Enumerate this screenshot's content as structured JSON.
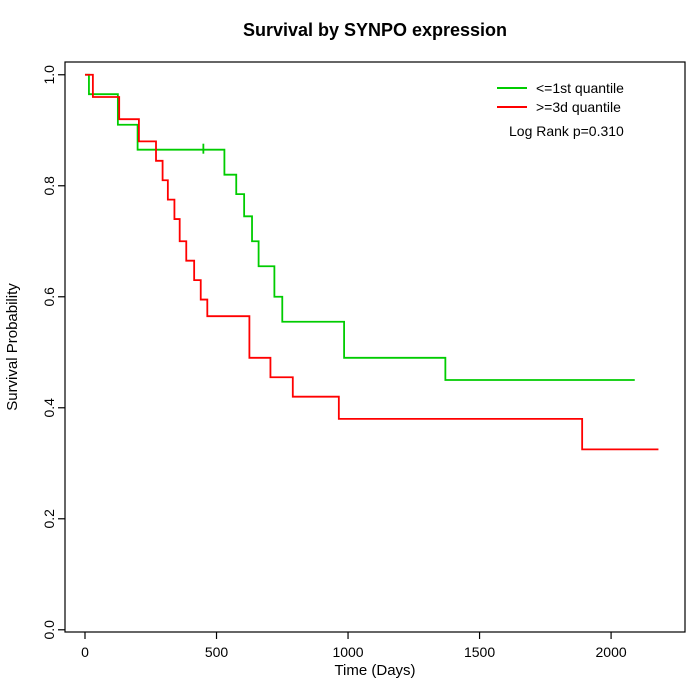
{
  "chart_data": {
    "type": "line",
    "subtype": "kaplan-meier-step",
    "title": "Survival by SYNPO expression",
    "xlabel": "Time (Days)",
    "ylabel": "Survival Probability",
    "xlim": [
      -76,
      2281
    ],
    "ylim": [
      -0.004,
      1.023
    ],
    "x_ticks": [
      0,
      500,
      1000,
      1500,
      2000
    ],
    "y_ticks": [
      0.0,
      0.2,
      0.4,
      0.6,
      0.8,
      1.0
    ],
    "grid": false,
    "legend_position": "top-right",
    "annotation": "Log Rank p=0.310",
    "series": [
      {
        "name": "<=1st quantile",
        "color": "#00cc00",
        "end_time": 2090,
        "points": [
          [
            0,
            1.0
          ],
          [
            15,
            0.965
          ],
          [
            125,
            0.91
          ],
          [
            200,
            0.865
          ],
          [
            530,
            0.82
          ],
          [
            575,
            0.785
          ],
          [
            605,
            0.745
          ],
          [
            635,
            0.7
          ],
          [
            660,
            0.655
          ],
          [
            720,
            0.6
          ],
          [
            750,
            0.555
          ],
          [
            985,
            0.49
          ],
          [
            1370,
            0.45
          ]
        ],
        "censor_times": [
          [
            450,
            0.865
          ]
        ]
      },
      {
        "name": ">=3d quantile",
        "color": "#ff0000",
        "end_time": 2180,
        "points": [
          [
            0,
            1.0
          ],
          [
            30,
            0.96
          ],
          [
            130,
            0.92
          ],
          [
            205,
            0.88
          ],
          [
            270,
            0.845
          ],
          [
            295,
            0.81
          ],
          [
            315,
            0.775
          ],
          [
            340,
            0.74
          ],
          [
            360,
            0.7
          ],
          [
            385,
            0.665
          ],
          [
            415,
            0.63
          ],
          [
            440,
            0.595
          ],
          [
            465,
            0.565
          ],
          [
            625,
            0.49
          ],
          [
            705,
            0.455
          ],
          [
            790,
            0.42
          ],
          [
            965,
            0.38
          ],
          [
            1890,
            0.325
          ]
        ],
        "censor_times": []
      }
    ]
  }
}
